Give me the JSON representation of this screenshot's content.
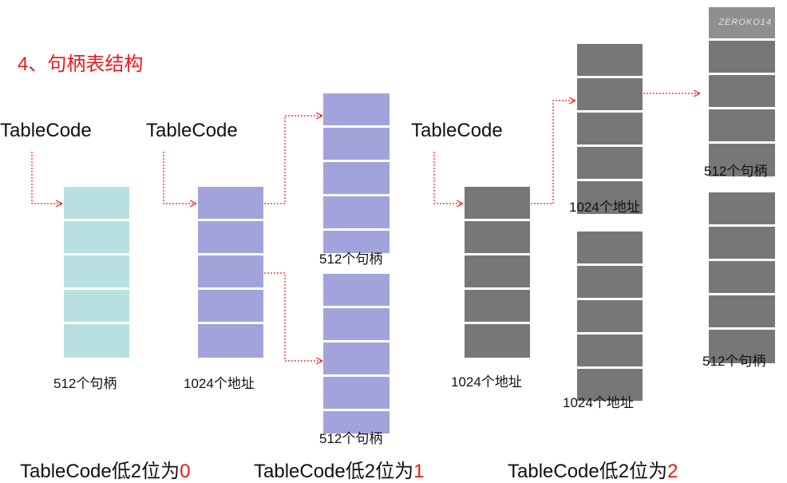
{
  "title": "4、句柄表结构",
  "watermark": "ZEROKO14",
  "tablecode_label": "TableCode",
  "labels": {
    "handles_512": "512个句柄",
    "addresses_1024": "1024个地址"
  },
  "bottom": {
    "prefix": "TableCode低2位为",
    "level0": "0",
    "level1": "1",
    "level2": "2"
  },
  "colors": {
    "accent_red": "#e8191c",
    "level0_cell": "#b8e0e3",
    "level1_cell": "#a3a3dc",
    "level2_cell": "#777777"
  }
}
